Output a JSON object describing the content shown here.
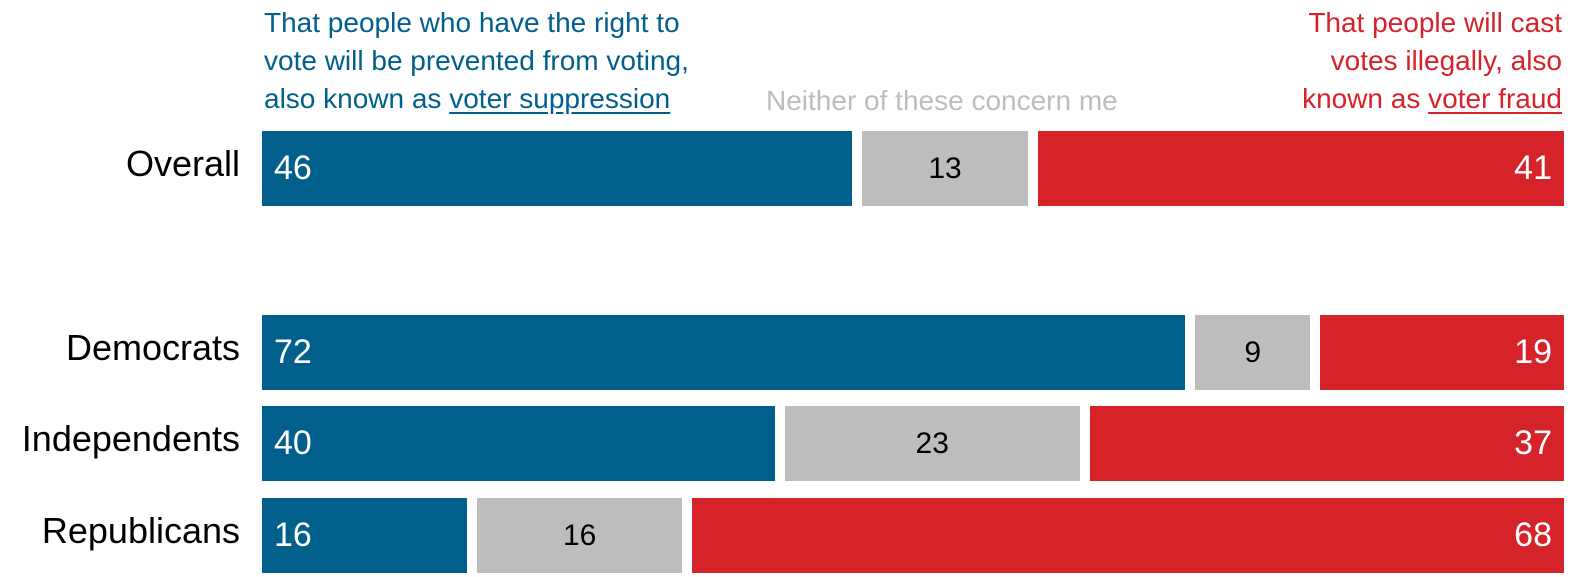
{
  "chart_data": {
    "type": "bar",
    "orientation": "horizontal",
    "stacked": true,
    "categories": [
      "Overall",
      "Democrats",
      "Independents",
      "Republicans"
    ],
    "series": [
      {
        "name_parts": [
          "That people who have the right to",
          "vote will be prevented from voting,",
          "also known as",
          "voter suppression"
        ],
        "color": "#005f8b",
        "values": [
          46,
          72,
          40,
          16
        ]
      },
      {
        "name": "Neither of these concern me",
        "color": "#bdbdbd",
        "values": [
          13,
          9,
          23,
          16
        ]
      },
      {
        "name_parts": [
          "That people will cast",
          "votes illegally, also",
          "known as",
          "voter fraud"
        ],
        "color": "#d62229",
        "values": [
          41,
          19,
          37,
          68
        ]
      }
    ],
    "xlim": [
      0,
      100
    ],
    "grid": false,
    "legend": "top"
  }
}
